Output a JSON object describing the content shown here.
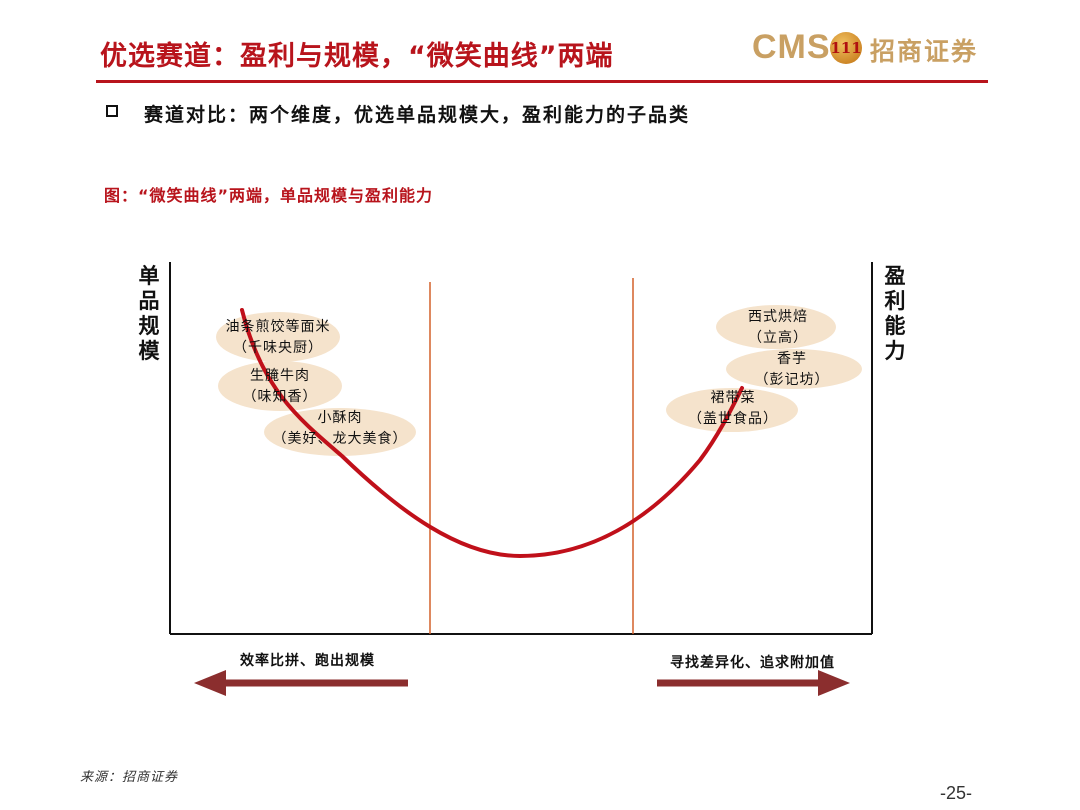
{
  "header": {
    "title": "优选赛道：盈利与规模，“微笑曲线”两端",
    "logo_cms": "CMS",
    "logo_emblem": "111",
    "logo_cn": "招商证券"
  },
  "subtitle": "赛道对比：两个维度，优选单品规模大，盈利能力的子品类",
  "figure": {
    "caption": "图：“微笑曲线”两端，单品规模与盈利能力",
    "left_axis_label": [
      "单",
      "品",
      "规",
      "模"
    ],
    "right_axis_label": [
      "盈",
      "利",
      "能",
      "力"
    ],
    "left_bubbles": [
      {
        "name": "油条煎饺等面米",
        "brand": "（千味央厨）"
      },
      {
        "name": "生腌牛肉",
        "brand": "（味知香）"
      },
      {
        "name": "小酥肉",
        "brand": "（美好、龙大美食）"
      }
    ],
    "right_bubbles": [
      {
        "name": "西式烘焙",
        "brand": "（立高）"
      },
      {
        "name": "香芋",
        "brand": "（彭记坊）"
      },
      {
        "name": "裙带菜",
        "brand": "（盖世食品）"
      }
    ],
    "left_arrow_label": "效率比拼、跑出规模",
    "right_arrow_label": "寻找差异化、追求附加值",
    "colors": {
      "curve": "#c0101a",
      "divider": "#d4602a",
      "arrow": "#8b2e2e",
      "bubble": "#f5e3cc"
    }
  },
  "footer": {
    "source": "来源：招商证券",
    "page": "-25-"
  }
}
